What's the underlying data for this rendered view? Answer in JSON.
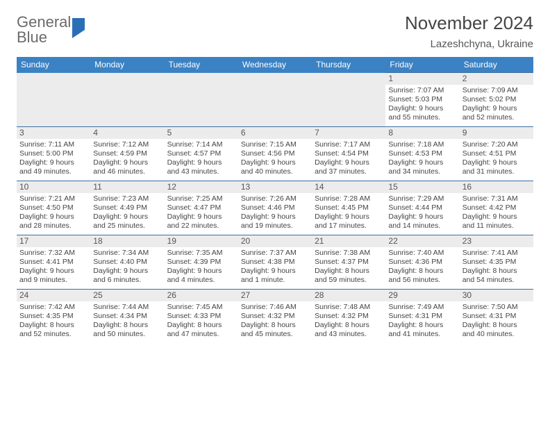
{
  "logo": {
    "text1": "General",
    "text2": "Blue"
  },
  "title": {
    "month": "November 2024",
    "location": "Lazeshchyna, Ukraine"
  },
  "colors": {
    "header_bg": "#3b82c4",
    "header_text": "#ffffff",
    "row_border": "#3b6fa3",
    "daynum_bg": "#ececec",
    "logo_gray": "#6a6a6a",
    "logo_blue": "#2a6fb5"
  },
  "layout": {
    "cols": 7,
    "rows": 5
  },
  "days": [
    "Sunday",
    "Monday",
    "Tuesday",
    "Wednesday",
    "Thursday",
    "Friday",
    "Saturday"
  ],
  "blank_count": 5,
  "cells": [
    {
      "n": "1",
      "sr": "Sunrise: 7:07 AM",
      "ss": "Sunset: 5:03 PM",
      "d1": "Daylight: 9 hours",
      "d2": "and 55 minutes."
    },
    {
      "n": "2",
      "sr": "Sunrise: 7:09 AM",
      "ss": "Sunset: 5:02 PM",
      "d1": "Daylight: 9 hours",
      "d2": "and 52 minutes."
    },
    {
      "n": "3",
      "sr": "Sunrise: 7:11 AM",
      "ss": "Sunset: 5:00 PM",
      "d1": "Daylight: 9 hours",
      "d2": "and 49 minutes."
    },
    {
      "n": "4",
      "sr": "Sunrise: 7:12 AM",
      "ss": "Sunset: 4:59 PM",
      "d1": "Daylight: 9 hours",
      "d2": "and 46 minutes."
    },
    {
      "n": "5",
      "sr": "Sunrise: 7:14 AM",
      "ss": "Sunset: 4:57 PM",
      "d1": "Daylight: 9 hours",
      "d2": "and 43 minutes."
    },
    {
      "n": "6",
      "sr": "Sunrise: 7:15 AM",
      "ss": "Sunset: 4:56 PM",
      "d1": "Daylight: 9 hours",
      "d2": "and 40 minutes."
    },
    {
      "n": "7",
      "sr": "Sunrise: 7:17 AM",
      "ss": "Sunset: 4:54 PM",
      "d1": "Daylight: 9 hours",
      "d2": "and 37 minutes."
    },
    {
      "n": "8",
      "sr": "Sunrise: 7:18 AM",
      "ss": "Sunset: 4:53 PM",
      "d1": "Daylight: 9 hours",
      "d2": "and 34 minutes."
    },
    {
      "n": "9",
      "sr": "Sunrise: 7:20 AM",
      "ss": "Sunset: 4:51 PM",
      "d1": "Daylight: 9 hours",
      "d2": "and 31 minutes."
    },
    {
      "n": "10",
      "sr": "Sunrise: 7:21 AM",
      "ss": "Sunset: 4:50 PM",
      "d1": "Daylight: 9 hours",
      "d2": "and 28 minutes."
    },
    {
      "n": "11",
      "sr": "Sunrise: 7:23 AM",
      "ss": "Sunset: 4:49 PM",
      "d1": "Daylight: 9 hours",
      "d2": "and 25 minutes."
    },
    {
      "n": "12",
      "sr": "Sunrise: 7:25 AM",
      "ss": "Sunset: 4:47 PM",
      "d1": "Daylight: 9 hours",
      "d2": "and 22 minutes."
    },
    {
      "n": "13",
      "sr": "Sunrise: 7:26 AM",
      "ss": "Sunset: 4:46 PM",
      "d1": "Daylight: 9 hours",
      "d2": "and 19 minutes."
    },
    {
      "n": "14",
      "sr": "Sunrise: 7:28 AM",
      "ss": "Sunset: 4:45 PM",
      "d1": "Daylight: 9 hours",
      "d2": "and 17 minutes."
    },
    {
      "n": "15",
      "sr": "Sunrise: 7:29 AM",
      "ss": "Sunset: 4:44 PM",
      "d1": "Daylight: 9 hours",
      "d2": "and 14 minutes."
    },
    {
      "n": "16",
      "sr": "Sunrise: 7:31 AM",
      "ss": "Sunset: 4:42 PM",
      "d1": "Daylight: 9 hours",
      "d2": "and 11 minutes."
    },
    {
      "n": "17",
      "sr": "Sunrise: 7:32 AM",
      "ss": "Sunset: 4:41 PM",
      "d1": "Daylight: 9 hours",
      "d2": "and 9 minutes."
    },
    {
      "n": "18",
      "sr": "Sunrise: 7:34 AM",
      "ss": "Sunset: 4:40 PM",
      "d1": "Daylight: 9 hours",
      "d2": "and 6 minutes."
    },
    {
      "n": "19",
      "sr": "Sunrise: 7:35 AM",
      "ss": "Sunset: 4:39 PM",
      "d1": "Daylight: 9 hours",
      "d2": "and 4 minutes."
    },
    {
      "n": "20",
      "sr": "Sunrise: 7:37 AM",
      "ss": "Sunset: 4:38 PM",
      "d1": "Daylight: 9 hours",
      "d2": "and 1 minute."
    },
    {
      "n": "21",
      "sr": "Sunrise: 7:38 AM",
      "ss": "Sunset: 4:37 PM",
      "d1": "Daylight: 8 hours",
      "d2": "and 59 minutes."
    },
    {
      "n": "22",
      "sr": "Sunrise: 7:40 AM",
      "ss": "Sunset: 4:36 PM",
      "d1": "Daylight: 8 hours",
      "d2": "and 56 minutes."
    },
    {
      "n": "23",
      "sr": "Sunrise: 7:41 AM",
      "ss": "Sunset: 4:35 PM",
      "d1": "Daylight: 8 hours",
      "d2": "and 54 minutes."
    },
    {
      "n": "24",
      "sr": "Sunrise: 7:42 AM",
      "ss": "Sunset: 4:35 PM",
      "d1": "Daylight: 8 hours",
      "d2": "and 52 minutes."
    },
    {
      "n": "25",
      "sr": "Sunrise: 7:44 AM",
      "ss": "Sunset: 4:34 PM",
      "d1": "Daylight: 8 hours",
      "d2": "and 50 minutes."
    },
    {
      "n": "26",
      "sr": "Sunrise: 7:45 AM",
      "ss": "Sunset: 4:33 PM",
      "d1": "Daylight: 8 hours",
      "d2": "and 47 minutes."
    },
    {
      "n": "27",
      "sr": "Sunrise: 7:46 AM",
      "ss": "Sunset: 4:32 PM",
      "d1": "Daylight: 8 hours",
      "d2": "and 45 minutes."
    },
    {
      "n": "28",
      "sr": "Sunrise: 7:48 AM",
      "ss": "Sunset: 4:32 PM",
      "d1": "Daylight: 8 hours",
      "d2": "and 43 minutes."
    },
    {
      "n": "29",
      "sr": "Sunrise: 7:49 AM",
      "ss": "Sunset: 4:31 PM",
      "d1": "Daylight: 8 hours",
      "d2": "and 41 minutes."
    },
    {
      "n": "30",
      "sr": "Sunrise: 7:50 AM",
      "ss": "Sunset: 4:31 PM",
      "d1": "Daylight: 8 hours",
      "d2": "and 40 minutes."
    }
  ]
}
